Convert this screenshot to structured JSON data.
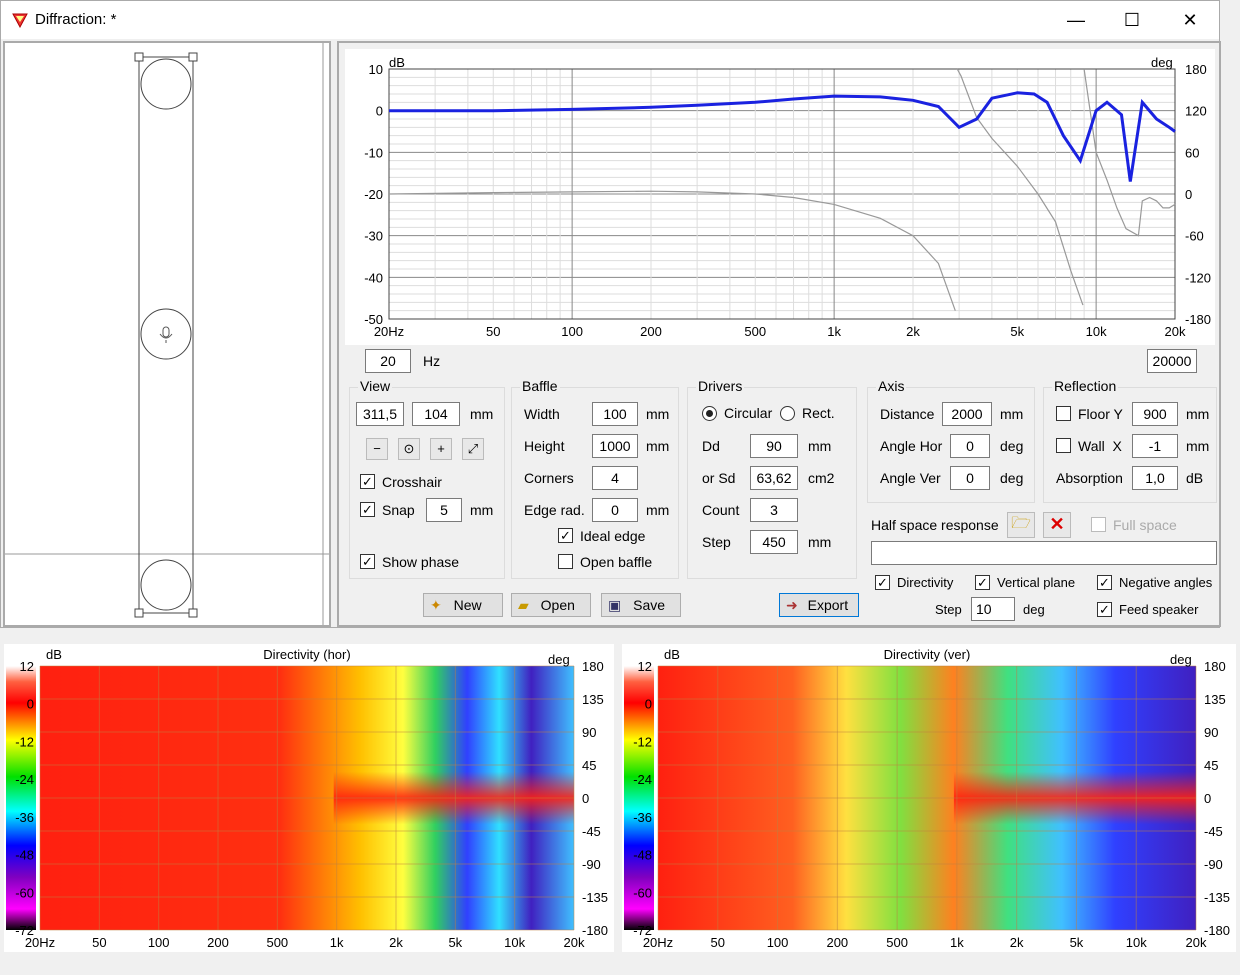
{
  "window": {
    "title": "Diffraction: *",
    "min_glyph": "—",
    "max_glyph": "☐",
    "close_glyph": "✕"
  },
  "colors": {
    "magnitude": "#1a22e0",
    "phase": "#999999",
    "titlebar": "#ffffff",
    "window_bg": "#f0f0f0"
  },
  "response_plot": {
    "left_axis_unit": "dB",
    "right_axis_unit": "deg",
    "y_left_ticks": [
      "10",
      "0",
      "-10",
      "-20",
      "-30",
      "-40",
      "-50"
    ],
    "y_right_ticks": [
      "180",
      "120",
      "60",
      "0",
      "-60",
      "-120",
      "-180"
    ],
    "x_ticks": [
      {
        "f": 20,
        "label": "20Hz"
      },
      {
        "f": 50,
        "label": "50"
      },
      {
        "f": 100,
        "label": "100"
      },
      {
        "f": 200,
        "label": "200"
      },
      {
        "f": 500,
        "label": "500"
      },
      {
        "f": 1000,
        "label": "1k"
      },
      {
        "f": 2000,
        "label": "2k"
      },
      {
        "f": 5000,
        "label": "5k"
      },
      {
        "f": 10000,
        "label": "10k"
      },
      {
        "f": 20000,
        "label": "20k"
      }
    ],
    "freq_min_value": "20",
    "freq_unit": "Hz",
    "freq_max_value": "20000"
  },
  "chart_data": [
    {
      "type": "line",
      "x_scale": "log",
      "xlim": [
        20,
        20000
      ],
      "ylim_left": [
        -50,
        10
      ],
      "ylim_right": [
        -180,
        180
      ],
      "ylabel": "dB",
      "y2label": "deg",
      "grid": true,
      "series": [
        {
          "axis": "left",
          "x": [
            20,
            50,
            100,
            200,
            300,
            500,
            700,
            1000,
            1500,
            2000,
            2500,
            3000,
            3500,
            4000,
            5000,
            5800,
            6500,
            7500,
            8700,
            10000,
            11000,
            12500,
            13500,
            15000,
            17000,
            19000,
            20000
          ],
          "y": [
            0,
            0,
            0.3,
            0.8,
            1.3,
            2,
            2.8,
            3.5,
            3.3,
            2.5,
            1,
            -4,
            -2,
            3,
            4.3,
            4,
            2,
            -6,
            -12,
            0,
            2,
            -1,
            -17,
            2,
            -2,
            -4,
            -5
          ]
        },
        {
          "axis": "right",
          "x": [
            20,
            50,
            100,
            200,
            300,
            500,
            700,
            1000,
            1500,
            2000,
            2500,
            2900,
            2950,
            3050,
            3500,
            4000,
            5000,
            6000,
            7000,
            8000,
            8900,
            9000,
            10000,
            11000,
            12000,
            13000,
            14500,
            15000,
            16000,
            17000,
            18000,
            19000,
            20000
          ],
          "y": [
            0,
            2,
            3,
            4,
            3,
            0,
            -5,
            -15,
            -35,
            -60,
            -100,
            -168,
            180,
            170,
            110,
            80,
            40,
            0,
            -40,
            -110,
            -160,
            180,
            60,
            20,
            -20,
            -50,
            -60,
            -10,
            -5,
            -10,
            -20,
            -20,
            -15
          ]
        }
      ]
    }
  ],
  "baffle_view": {},
  "controls": {
    "view": {
      "label": "View",
      "coord_x": "311,5",
      "coord_y": "104",
      "unit": "mm",
      "crosshair_label": "Crosshair",
      "crosshair_checked": true,
      "snap_label": "Snap",
      "snap_checked": true,
      "snap_value": "5",
      "snap_unit": "mm",
      "show_phase_label": "Show phase",
      "show_phase_checked": true
    },
    "baffle": {
      "label": "Baffle",
      "width_label": "Width",
      "width_value": "100",
      "height_label": "Height",
      "height_value": "1000",
      "corners_label": "Corners",
      "corners_value": "4",
      "edge_label": "Edge rad.",
      "edge_value": "0",
      "unit": "mm",
      "ideal_edge_label": "Ideal edge",
      "ideal_edge_checked": true,
      "open_baffle_label": "Open baffle",
      "open_baffle_checked": false
    },
    "drivers": {
      "label": "Drivers",
      "circular_label": "Circular",
      "rect_label": "Rect.",
      "dd_label": "Dd",
      "dd_value": "90",
      "dd_unit": "mm",
      "sd_label": "or Sd",
      "sd_value": "63,62",
      "sd_unit": "cm2",
      "count_label": "Count",
      "count_value": "3",
      "step_label": "Step",
      "step_value": "450",
      "step_unit": "mm"
    },
    "axis": {
      "label": "Axis",
      "distance_label": "Distance",
      "distance_value": "2000",
      "distance_unit": "mm",
      "angle_hor_label": "Angle Hor",
      "angle_hor_value": "0",
      "angle_ver_label": "Angle Ver",
      "angle_ver_value": "0",
      "deg_unit": "deg"
    },
    "reflection": {
      "label": "Reflection",
      "floor_label": "Floor Y",
      "floor_value": "900",
      "floor_unit": "mm",
      "wall_label": "Wall  X",
      "wall_value": "-1",
      "wall_unit": "mm",
      "absorption_label": "Absorption",
      "absorption_value": "1,0",
      "absorption_unit": "dB"
    },
    "half_space": {
      "label": "Half space response",
      "full_space_label": "Full space",
      "path_value": ""
    },
    "directivity": {
      "directivity_label": "Directivity",
      "directivity_checked": true,
      "vertical_label": "Vertical plane",
      "vertical_checked": true,
      "negative_label": "Negative angles",
      "negative_checked": true,
      "feed_label": "Feed speaker",
      "feed_checked": true,
      "step_label": "Step",
      "step_value": "10",
      "step_unit": "deg"
    },
    "buttons": {
      "new_label": "New",
      "open_label": "Open",
      "save_label": "Save",
      "export_label": "Export"
    }
  },
  "directivity_plots": {
    "hor_title": "Directivity (hor)",
    "ver_title": "Directivity (ver)",
    "db_unit": "dB",
    "deg_unit": "deg",
    "db_ticks": [
      "12",
      "0",
      "-12",
      "-24",
      "-36",
      "-48",
      "-60",
      "-72"
    ],
    "deg_ticks": [
      "180",
      "135",
      "90",
      "45",
      "0",
      "-45",
      "-90",
      "-135",
      "-180"
    ],
    "x_labels": [
      "20Hz",
      "50",
      "100",
      "200",
      "500",
      "1k",
      "2k",
      "5k",
      "10k",
      "20k"
    ]
  }
}
